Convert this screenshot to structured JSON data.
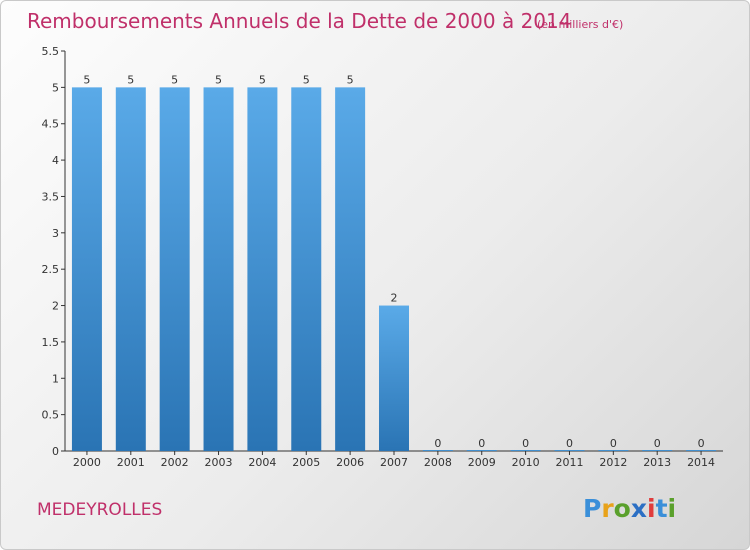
{
  "header": {
    "title": "Remboursements Annuels de la Dette de 2000 à 2014",
    "unit": "(en milliers d'€)"
  },
  "commune": "MEDEYROLLES",
  "brand": {
    "letters": [
      "P",
      "r",
      "o",
      "x",
      "i",
      "t",
      "i"
    ],
    "colors": [
      "#3a8fd9",
      "#e8a21a",
      "#5aa02c",
      "#2b6fc4",
      "#e03c3c",
      "#3a8fd9",
      "#5aa02c"
    ]
  },
  "colors": {
    "bar_light": "#5aaae8",
    "bar_dark": "#2a74b4",
    "accent": "#c0306a"
  },
  "chart_data": {
    "type": "bar",
    "title": "Remboursements Annuels de la Dette de 2000 à 2014",
    "categories": [
      "2000",
      "2001",
      "2002",
      "2003",
      "2004",
      "2005",
      "2006",
      "2007",
      "2008",
      "2009",
      "2010",
      "2011",
      "2012",
      "2013",
      "2014"
    ],
    "values": [
      5,
      5,
      5,
      5,
      5,
      5,
      5,
      2,
      0,
      0,
      0,
      0,
      0,
      0,
      0
    ],
    "data_labels": [
      "5",
      "5",
      "5",
      "5",
      "5",
      "5",
      "5",
      "2",
      "0",
      "0",
      "0",
      "0",
      "0",
      "0",
      "0"
    ],
    "ylim": [
      0,
      5.5
    ],
    "yticks": [
      0,
      0.5,
      1,
      1.5,
      2,
      2.5,
      3,
      3.5,
      4,
      4.5,
      5,
      5.5
    ],
    "ytick_labels": [
      "0",
      "0.5",
      "1",
      "1.5",
      "2",
      "2.5",
      "3",
      "3.5",
      "4",
      "4.5",
      "5",
      "5.5"
    ],
    "grid": false,
    "legend": "none"
  }
}
